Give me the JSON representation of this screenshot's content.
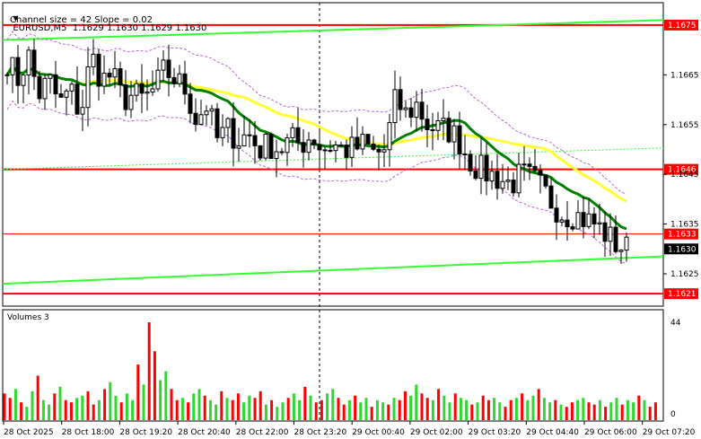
{
  "header": {
    "symbol_line": "EURUSD,M5  1.1629 1.1630 1.1629 1.1630",
    "channel_line": "Channel size = 42 Slope = 0.02",
    "volumes_label": "Volumes 3"
  },
  "chart_data": {
    "type": "candlestick",
    "symbol": "EURUSD",
    "timeframe": "M5",
    "ohlc_current": {
      "open": 1.1629,
      "high": 1.163,
      "low": 1.1629,
      "close": 1.163
    },
    "channel": {
      "size": 42,
      "slope": 0.02
    },
    "ylim": [
      1.16185,
      1.16795
    ],
    "y_ticks": [
      "1.1665",
      "1.1655",
      "1.1645",
      "1.1635",
      "1.1625"
    ],
    "price_levels": [
      {
        "value": 1.1675,
        "label": "1.1675"
      },
      {
        "value": 1.1646,
        "label": "1.1646"
      },
      {
        "value": 1.1633,
        "label": "1.1633"
      },
      {
        "value": 1.1621,
        "label": "1.1621"
      }
    ],
    "current_price": {
      "value": 1.163,
      "label": "1.1630"
    },
    "x_labels": [
      "28 Oct 2025",
      "28 Oct 18:00",
      "28 Oct 19:20",
      "28 Oct 20:40",
      "28 Oct 22:00",
      "28 Oct 23:20",
      "29 Oct 00:40",
      "29 Oct 02:00",
      "29 Oct 03:20",
      "29 Oct 04:40",
      "29 Oct 06:00",
      "29 Oct 07:20"
    ],
    "close_path": [
      1.1668,
      1.1664,
      1.1669,
      1.1661,
      1.1664,
      1.1659,
      1.1662,
      1.1657,
      1.1669,
      1.1664,
      1.1665,
      1.166,
      1.1661,
      1.166,
      1.1662,
      1.1666,
      1.1664,
      1.1662,
      1.1656,
      1.1659,
      1.1652,
      1.1654,
      1.1652,
      1.1653,
      1.165,
      1.1651,
      1.165,
      1.1652,
      1.1651,
      1.1653,
      1.165,
      1.1651,
      1.165,
      1.165,
      1.1651,
      1.1649,
      1.165,
      1.166,
      1.1657,
      1.1659,
      1.1655,
      1.1654,
      1.1654,
      1.1652,
      1.1648,
      1.1646,
      1.1645,
      1.1644,
      1.1643,
      1.1645,
      1.1644,
      1.1642,
      1.1639,
      1.1637,
      1.1637,
      1.1636,
      1.1635,
      1.1633,
      1.1631,
      1.163
    ],
    "volume_scale": {
      "max_label": "44",
      "min_label": "0",
      "max": 44
    },
    "volumes": [
      12,
      10,
      14,
      8,
      6,
      13,
      20,
      9,
      7,
      12,
      15,
      9,
      8,
      10,
      11,
      13,
      7,
      9,
      14,
      17,
      11,
      8,
      12,
      9,
      25,
      16,
      44,
      31,
      18,
      22,
      14,
      9,
      10,
      8,
      12,
      14,
      11,
      9,
      7,
      13,
      10,
      9,
      12,
      8,
      11,
      10,
      13,
      7,
      9,
      6,
      8,
      10,
      12,
      9,
      15,
      11,
      8,
      9,
      12,
      14,
      10,
      7,
      9,
      11,
      8,
      10,
      6,
      9,
      8,
      7,
      10,
      9,
      13,
      11,
      16,
      12,
      10,
      9,
      14,
      11,
      8,
      12,
      10,
      9,
      7,
      8,
      11,
      9,
      10,
      8,
      6,
      9,
      10,
      12,
      9,
      11,
      14,
      10,
      8,
      9,
      7,
      6,
      8,
      9,
      10,
      8,
      7,
      9,
      6,
      8,
      10,
      7,
      9,
      8,
      11,
      9,
      6,
      8
    ],
    "colors": {
      "candle": "#000000",
      "ma_fast": "#008000",
      "ma_slow": "#ffff33",
      "channel": "#33ff33",
      "levels": "#ff0000",
      "envelope": "#bb66dd",
      "volume_up": "#2ed82e",
      "volume_down": "#ff0000"
    }
  }
}
